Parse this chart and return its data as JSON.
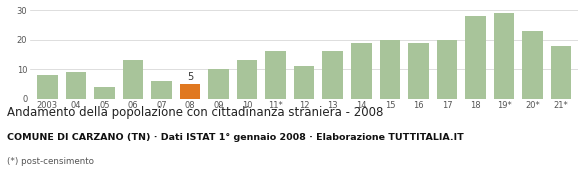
{
  "categories": [
    "2003",
    "04",
    "05",
    "06",
    "07",
    "08",
    "09",
    "10",
    "11*",
    "12",
    "13",
    "14",
    "15",
    "16",
    "17",
    "18",
    "19*",
    "20*",
    "21*"
  ],
  "values": [
    8,
    9,
    4,
    13,
    6,
    5,
    10,
    13,
    16,
    11,
    16,
    19,
    20,
    19,
    20,
    28,
    29,
    23,
    18
  ],
  "highlight_index": 5,
  "highlight_value": 5,
  "bar_color_normal": "#a8c49a",
  "bar_color_highlight": "#e07820",
  "background_color": "#ffffff",
  "grid_color": "#d0d0d0",
  "title": "Andamento della popolazione con cittadinanza straniera - 2008",
  "subtitle": "COMUNE DI CARZANO (TN) · Dati ISTAT 1° gennaio 2008 · Elaborazione TUTTITALIA.IT",
  "footnote": "(*) post-censimento",
  "ylim": [
    0,
    32
  ],
  "yticks": [
    0,
    10,
    20,
    30
  ],
  "title_fontsize": 8.5,
  "subtitle_fontsize": 6.8,
  "footnote_fontsize": 6.3,
  "tick_fontsize": 6.0,
  "annotation_fontsize": 7.0
}
